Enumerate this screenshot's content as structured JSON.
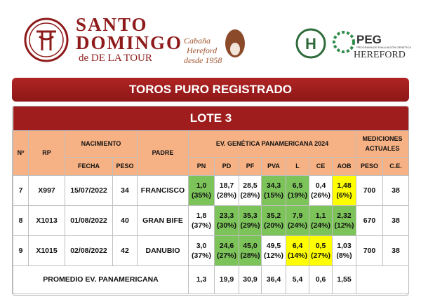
{
  "header": {
    "brand_line1": "SANTO",
    "brand_line2": "DOMINGO",
    "brand_line3": "de DE LA TOUR",
    "tagline": [
      "Cabaña",
      "Hereford",
      "desde 1958"
    ],
    "badge": "H",
    "peg": "PEG",
    "peg_sub": "PROGRAMA DE EVALUACIÓN GENÉTICA",
    "peg_brand": "HEREFORD"
  },
  "banner": "TOROS PURO REGISTRADO",
  "table": {
    "title": "LOTE 3",
    "head": {
      "n": "Nº",
      "rp": "RP",
      "nacimiento": "NACIMIENTO",
      "fecha": "FECHA",
      "peso": "PESO",
      "padre": "PADRE",
      "ev": "EV. GENÉTICA PANAMERICANA 2024",
      "ev_cols": [
        "PN",
        "PD",
        "PF",
        "PVA",
        "L",
        "CE",
        "AOB"
      ],
      "med": "MEDICIONES ACTUALES",
      "med_cols": [
        "PESO",
        "C.E."
      ]
    },
    "rows": [
      {
        "n": "7",
        "rp": "X997",
        "fecha": "15/07/2022",
        "peso": "34",
        "padre": "FRANCISCO",
        "ev": [
          {
            "value": "1,0",
            "pct": "(35%)",
            "color": "#7cc35a"
          },
          {
            "value": "18,7",
            "pct": "(28%)",
            "color": "#ffffff"
          },
          {
            "value": "28,5",
            "pct": "(28%)",
            "color": "#ffffff"
          },
          {
            "value": "34,3",
            "pct": "(15%)",
            "color": "#7cc35a"
          },
          {
            "value": "6,5",
            "pct": "(19%)",
            "color": "#7cc35a"
          },
          {
            "value": "0,4",
            "pct": "(26%)",
            "color": "#ffffff"
          },
          {
            "value": "1,48",
            "pct": "(6%)",
            "color": "#ffff00"
          }
        ],
        "med": [
          "700",
          "38"
        ]
      },
      {
        "n": "8",
        "rp": "X1013",
        "fecha": "01/08/2022",
        "peso": "40",
        "padre": "GRAN BIFE",
        "ev": [
          {
            "value": "1,8",
            "pct": "(37%)",
            "color": "#ffffff"
          },
          {
            "value": "23,3",
            "pct": "(30%)",
            "color": "#7cc35a"
          },
          {
            "value": "35,3",
            "pct": "(29%)",
            "color": "#7cc35a"
          },
          {
            "value": "35,2",
            "pct": "(20%)",
            "color": "#7cc35a"
          },
          {
            "value": "7,9",
            "pct": "(24%)",
            "color": "#7cc35a"
          },
          {
            "value": "1,1",
            "pct": "(24%)",
            "color": "#7cc35a"
          },
          {
            "value": "2,32",
            "pct": "(12%)",
            "color": "#7cc35a"
          }
        ],
        "med": [
          "670",
          "38"
        ]
      },
      {
        "n": "9",
        "rp": "X1015",
        "fecha": "02/08/2022",
        "peso": "42",
        "padre": "DANUBIO",
        "ev": [
          {
            "value": "3,0",
            "pct": "(37%)",
            "color": "#ffffff"
          },
          {
            "value": "24,6",
            "pct": "(27%)",
            "color": "#7cc35a"
          },
          {
            "value": "45,0",
            "pct": "(28%)",
            "color": "#7cc35a"
          },
          {
            "value": "49,5",
            "pct": "(12%)",
            "color": "#ffffff"
          },
          {
            "value": "6,4",
            "pct": "(14%)",
            "color": "#ffff00"
          },
          {
            "value": "0,5",
            "pct": "(27%)",
            "color": "#ffff00"
          },
          {
            "value": "1,03",
            "pct": "(8%)",
            "color": "#ffffff"
          }
        ],
        "med": [
          "700",
          "38"
        ]
      }
    ],
    "footer": {
      "label": "PROMEDIO EV. PANAMERICANA",
      "values": [
        "1,3",
        "19,9",
        "30,9",
        "36,4",
        "5,4",
        "0,6",
        "1,55"
      ]
    }
  }
}
